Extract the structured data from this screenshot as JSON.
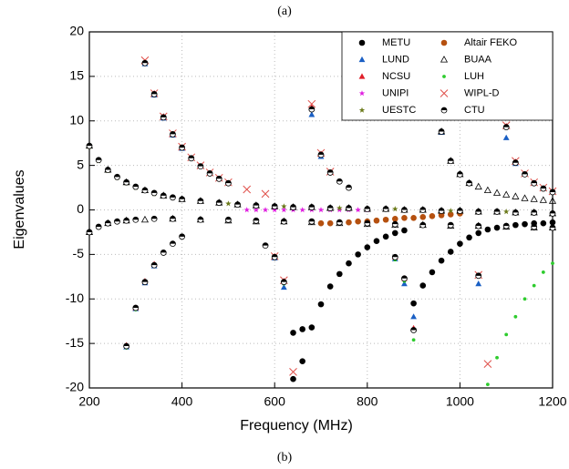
{
  "chart_data": {
    "type": "scatter",
    "title": "(a)",
    "caption": "(b)",
    "x_label": "Frequency (MHz)",
    "y_label": "Eigenvalues",
    "xlim": [
      200,
      1200
    ],
    "ylim": [
      -20,
      20
    ],
    "xticks": [
      200,
      400,
      600,
      800,
      1000,
      1200
    ],
    "yticks": [
      -20,
      -15,
      -10,
      -5,
      0,
      5,
      10,
      15,
      20
    ],
    "grid": true,
    "legend": "upper right",
    "series": [
      {
        "name": "METU",
        "color": "#000000",
        "marker": "circle",
        "x": [
          640,
          660,
          680,
          700,
          720,
          740,
          760,
          780,
          800,
          820,
          840,
          860,
          880,
          900,
          920,
          940,
          960,
          980,
          1000,
          1020,
          1040,
          1060,
          1080,
          1100,
          1120,
          1140,
          1160,
          1180,
          1200,
          660,
          640
        ],
        "values": [
          -13.8,
          -13.4,
          -13.2,
          -10.6,
          -8.6,
          -7.2,
          -6.0,
          -5.0,
          -4.2,
          -3.5,
          -3.0,
          -2.6,
          -2.3,
          -10.5,
          -8.5,
          -7.0,
          -5.7,
          -4.7,
          -3.8,
          -3.1,
          -2.6,
          -2.2,
          -2.0,
          -1.8,
          -1.7,
          -1.6,
          -1.5,
          -1.5,
          -1.4,
          -17.0,
          -19.0
        ]
      },
      {
        "name": "Altair FEKO",
        "color": "#b5500f",
        "marker": "circle",
        "x": [
          700,
          720,
          740,
          760,
          780,
          800,
          820,
          840,
          860,
          880,
          900,
          920,
          940,
          960,
          980,
          1000
        ],
        "values": [
          -1.5,
          -1.5,
          -1.4,
          -1.4,
          -1.3,
          -1.3,
          -1.2,
          -1.1,
          -1.0,
          -0.9,
          -0.9,
          -0.8,
          -0.7,
          -0.6,
          -0.5,
          -0.4
        ]
      },
      {
        "name": "LUND",
        "color": "#1a5fc4",
        "marker": "triangle",
        "x": [
          320,
          340,
          360,
          380,
          400,
          280,
          300,
          320,
          340,
          600,
          620,
          680,
          700,
          860,
          880,
          900,
          960,
          1040,
          1100,
          1120
        ],
        "values": [
          16.4,
          12.9,
          10.3,
          8.4,
          6.9,
          -15.4,
          -11.1,
          -8.2,
          -6.3,
          -5.4,
          -8.7,
          10.7,
          6.0,
          -5.5,
          -8.3,
          -12.0,
          8.7,
          -8.3,
          8.1,
          5.2
        ]
      },
      {
        "name": "BUAA",
        "color": "#000000",
        "marker": "triangle-open",
        "x": [
          200,
          240,
          280,
          320,
          360,
          400,
          440,
          480,
          520,
          560,
          600,
          640,
          680,
          720,
          760,
          800,
          840,
          880,
          920,
          960,
          1000,
          1040,
          1080,
          1120,
          1160,
          1200,
          200,
          240,
          280,
          320,
          380,
          440,
          500,
          560,
          620,
          680,
          740,
          800,
          860,
          920,
          980,
          1040,
          1100,
          1160,
          1200,
          960,
          980,
          1000,
          1020,
          1040,
          1060,
          1080,
          1100,
          1120,
          1140,
          1160,
          1180,
          1200
        ],
        "values": [
          7.2,
          4.5,
          3.1,
          2.2,
          1.6,
          1.2,
          1.0,
          0.8,
          0.6,
          0.5,
          0.4,
          0.3,
          0.3,
          0.2,
          0.2,
          0.1,
          0.1,
          0.0,
          0.0,
          -0.1,
          -0.1,
          -0.2,
          -0.2,
          -0.3,
          -0.3,
          -0.4,
          -2.5,
          -1.5,
          -1.2,
          -1.1,
          -1.0,
          -1.1,
          -1.2,
          -1.3,
          -1.3,
          -1.4,
          -1.5,
          -1.6,
          -1.7,
          -1.7,
          -1.8,
          -1.8,
          -1.9,
          -2.0,
          -2.0,
          8.8,
          5.5,
          4.0,
          3.0,
          2.6,
          2.2,
          1.9,
          1.7,
          1.5,
          1.3,
          1.2,
          1.1,
          1.0
        ]
      },
      {
        "name": "NCSU",
        "color": "#e0202a",
        "marker": "triangle",
        "x": [
          320,
          340,
          360,
          380,
          400,
          280,
          300,
          320,
          340,
          600,
          620,
          680,
          700,
          860,
          880,
          900,
          1100,
          1120
        ],
        "values": [
          16.6,
          13.1,
          10.5,
          8.5,
          7.0,
          -15.2,
          -11.0,
          -8.0,
          -6.1,
          -5.2,
          -8.0,
          11.5,
          6.3,
          -5.3,
          -7.7,
          -13.3,
          9.4,
          5.4
        ]
      },
      {
        "name": "LUH",
        "color": "#2ecc2e",
        "marker": "dot",
        "x": [
          1060,
          1080,
          1100,
          1120,
          1140,
          1160,
          1180,
          1200,
          900,
          880,
          860,
          600,
          620,
          280,
          300
        ],
        "values": [
          -19.6,
          -16.6,
          -14.0,
          -12.0,
          -10.0,
          -8.5,
          -7.0,
          -6.0,
          -14.6,
          -8.0,
          -5.6,
          -5.3,
          -8.3,
          -15.5,
          -11.2
        ]
      },
      {
        "name": "UNIPI",
        "color": "#e020e0",
        "marker": "star",
        "x": [
          540,
          560,
          580,
          600,
          620,
          640,
          660,
          680,
          700,
          720,
          740,
          760,
          780,
          800
        ],
        "values": [
          0.0,
          0.0,
          0.0,
          0.0,
          0.0,
          0.0,
          0.0,
          0.0,
          0.0,
          0.0,
          0.0,
          0.0,
          0.0,
          0.0
        ]
      },
      {
        "name": "WIPL-D",
        "color": "#e0504a",
        "marker": "x",
        "x": [
          320,
          340,
          360,
          380,
          400,
          420,
          440,
          460,
          480,
          500,
          540,
          580,
          640,
          680,
          700,
          720,
          1040,
          1060,
          1100,
          1120,
          1140,
          1160,
          1180,
          1200,
          600,
          620
        ],
        "values": [
          16.8,
          13.1,
          10.5,
          8.6,
          7.1,
          5.9,
          5.0,
          4.2,
          3.6,
          3.1,
          2.3,
          1.8,
          -18.2,
          11.9,
          6.4,
          4.3,
          -7.3,
          -17.3,
          9.5,
          5.5,
          4.1,
          3.1,
          2.5,
          2.1,
          -5.2,
          -7.9
        ]
      },
      {
        "name": "UESTC",
        "color": "#6b7a1a",
        "marker": "star",
        "x": [
          200,
          220,
          240,
          260,
          280,
          300,
          340,
          380,
          440,
          500,
          560,
          620,
          680,
          740,
          800,
          860,
          920,
          980,
          1040,
          1100,
          1160,
          1200
        ],
        "values": [
          7.1,
          5.5,
          4.4,
          3.6,
          3.0,
          2.5,
          1.8,
          1.4,
          1.0,
          0.7,
          0.5,
          0.4,
          0.3,
          0.2,
          0.1,
          0.1,
          0.0,
          -0.1,
          -0.2,
          -0.2,
          -0.3,
          -0.4
        ]
      },
      {
        "name": "CTU",
        "color": "#000000",
        "marker": "half-circle",
        "x": [
          200,
          220,
          240,
          260,
          280,
          300,
          320,
          340,
          360,
          380,
          400,
          440,
          480,
          520,
          560,
          600,
          640,
          680,
          720,
          760,
          800,
          840,
          880,
          920,
          960,
          1000,
          1040,
          1080,
          1120,
          1160,
          1200,
          200,
          220,
          240,
          260,
          280,
          300,
          340,
          380,
          440,
          500,
          560,
          620,
          680,
          740,
          800,
          860,
          920,
          980,
          1040,
          1100,
          1160,
          1200,
          320,
          340,
          360,
          380,
          400,
          420,
          440,
          460,
          480,
          500,
          280,
          300,
          320,
          340,
          360,
          380,
          400,
          580,
          600,
          620,
          680,
          700,
          720,
          740,
          760,
          860,
          880,
          900,
          960,
          980,
          1000,
          1020,
          1100,
          1120,
          1140,
          1160,
          1180,
          1200,
          1040
        ],
        "values": [
          7.2,
          5.6,
          4.5,
          3.7,
          3.1,
          2.6,
          2.2,
          1.9,
          1.6,
          1.4,
          1.2,
          1.0,
          0.8,
          0.6,
          0.5,
          0.4,
          0.3,
          0.3,
          0.2,
          0.2,
          0.1,
          0.1,
          0.0,
          0.0,
          -0.1,
          -0.1,
          -0.2,
          -0.2,
          -0.3,
          -0.3,
          -0.4,
          -2.5,
          -1.9,
          -1.5,
          -1.3,
          -1.2,
          -1.1,
          -1.0,
          -1.0,
          -1.1,
          -1.1,
          -1.2,
          -1.3,
          -1.3,
          -1.4,
          -1.5,
          -1.6,
          -1.7,
          -1.7,
          -1.8,
          -1.8,
          -1.9,
          -2.0,
          16.5,
          13.0,
          10.4,
          8.5,
          7.0,
          5.8,
          4.9,
          4.1,
          3.5,
          3.0,
          -15.3,
          -11.0,
          -8.1,
          -6.2,
          -4.8,
          -3.8,
          -3.0,
          -4.0,
          -5.3,
          -8.1,
          11.3,
          6.2,
          4.2,
          3.2,
          2.5,
          -5.3,
          -7.7,
          -13.5,
          8.8,
          5.5,
          4.0,
          3.0,
          9.3,
          5.3,
          4.0,
          3.0,
          2.4,
          2.0,
          -7.4
        ]
      }
    ]
  }
}
